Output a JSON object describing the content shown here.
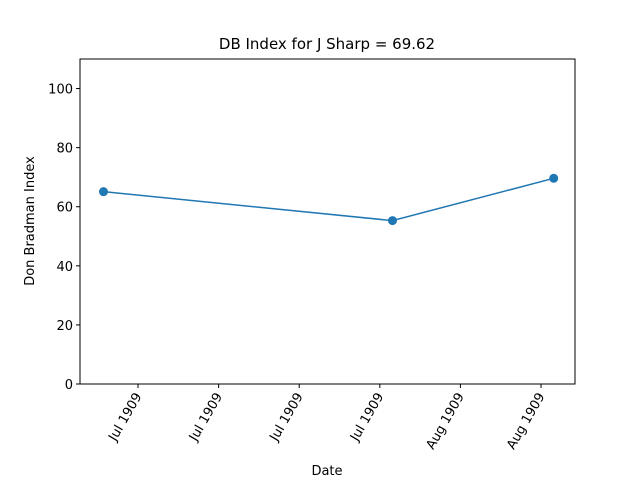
{
  "chart_data": {
    "type": "line",
    "title": "DB Index for J Sharp = 69.62",
    "x_label": "Date",
    "y_label": "Don Bradman Index",
    "x": [
      -3.0,
      22.1,
      36.1
    ],
    "series": [
      {
        "color": "#1f77b4",
        "values": [
          65.1,
          55.3,
          69.62
        ]
      }
    ],
    "xlim": [
      -5.04,
      37.95
    ],
    "xticks": [
      {
        "value": 0,
        "label": "Jul 1909"
      },
      {
        "value": 7,
        "label": "Jul 1909"
      },
      {
        "value": 14,
        "label": "Jul 1909"
      },
      {
        "value": 21,
        "label": "Jul 1909"
      },
      {
        "value": 28,
        "label": "Aug 1909"
      },
      {
        "value": 35,
        "label": "Aug 1909"
      }
    ],
    "ylim": [
      0,
      110
    ],
    "yticks": [
      0,
      20,
      40,
      60,
      80,
      100
    ],
    "grid": false
  }
}
